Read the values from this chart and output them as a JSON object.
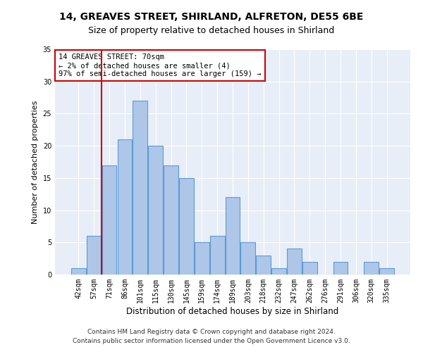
{
  "title1": "14, GREAVES STREET, SHIRLAND, ALFRETON, DE55 6BE",
  "title2": "Size of property relative to detached houses in Shirland",
  "xlabel": "Distribution of detached houses by size in Shirland",
  "ylabel": "Number of detached properties",
  "bar_labels": [
    "42sqm",
    "57sqm",
    "71sqm",
    "86sqm",
    "101sqm",
    "115sqm",
    "130sqm",
    "145sqm",
    "159sqm",
    "174sqm",
    "189sqm",
    "203sqm",
    "218sqm",
    "232sqm",
    "247sqm",
    "262sqm",
    "276sqm",
    "291sqm",
    "306sqm",
    "320sqm",
    "335sqm"
  ],
  "bar_values": [
    1,
    6,
    17,
    21,
    27,
    20,
    17,
    15,
    5,
    6,
    12,
    5,
    3,
    1,
    4,
    2,
    0,
    2,
    0,
    2,
    1
  ],
  "bar_color": "#aec6e8",
  "bar_edgecolor": "#5b9bd5",
  "vline_x_index": 2,
  "vline_color": "#cc0000",
  "annotation_lines": [
    "14 GREAVES STREET: 70sqm",
    "← 2% of detached houses are smaller (4)",
    "97% of semi-detached houses are larger (159) →"
  ],
  "annotation_box_edgecolor": "#cc0000",
  "ylim": [
    0,
    35
  ],
  "yticks": [
    0,
    5,
    10,
    15,
    20,
    25,
    30,
    35
  ],
  "footer1": "Contains HM Land Registry data © Crown copyright and database right 2024.",
  "footer2": "Contains public sector information licensed under the Open Government Licence v3.0.",
  "bg_color": "#e8eef7",
  "grid_color": "#ffffff",
  "title1_fontsize": 10,
  "title2_fontsize": 9,
  "xlabel_fontsize": 8.5,
  "ylabel_fontsize": 8,
  "footer_fontsize": 6.5,
  "tick_fontsize": 7,
  "ann_fontsize": 7.5
}
